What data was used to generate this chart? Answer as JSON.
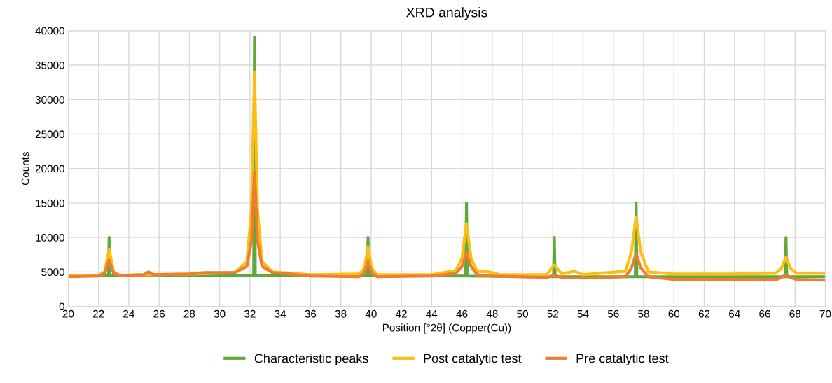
{
  "chart_data": {
    "type": "line",
    "title": "XRD analysis",
    "xlabel": "Position [°2θ] (Copper(Cu))",
    "ylabel": "Counts",
    "xlim": [
      20,
      70
    ],
    "xticks": [
      20,
      22,
      24,
      26,
      28,
      30,
      32,
      34,
      36,
      38,
      40,
      42,
      44,
      46,
      48,
      50,
      52,
      54,
      56,
      58,
      60,
      62,
      64,
      66,
      68,
      70
    ],
    "ylim": [
      0,
      40000
    ],
    "yticks": [
      0,
      5000,
      10000,
      15000,
      20000,
      25000,
      30000,
      35000,
      40000
    ],
    "grid": true,
    "legend": "bottom",
    "marker": "none",
    "line_style": "solid",
    "series": [
      {
        "name": "Characteristic peaks",
        "color": "#5fa83a",
        "x": [
          20,
          22.65,
          22.7,
          22.75,
          32.25,
          32.3,
          32.35,
          39.75,
          39.8,
          39.85,
          46.25,
          46.3,
          46.35,
          52.05,
          52.1,
          52.15,
          57.45,
          57.5,
          57.55,
          67.35,
          67.4,
          67.45,
          70
        ],
        "values": [
          4500,
          4500,
          10000,
          4500,
          4500,
          39000,
          4500,
          4500,
          10000,
          4500,
          4400,
          15000,
          4400,
          4300,
          10000,
          4300,
          4300,
          15000,
          4300,
          4300,
          10000,
          4300,
          4300
        ]
      },
      {
        "name": "Post catalytic test",
        "color": "#fbbf14",
        "x": [
          20,
          22,
          22.4,
          22.7,
          23.0,
          23.4,
          25,
          28,
          31,
          31.8,
          32.1,
          32.3,
          32.5,
          32.8,
          33.5,
          36,
          39.2,
          39.55,
          39.8,
          40.05,
          40.4,
          44,
          45.6,
          46.0,
          46.3,
          46.6,
          47.0,
          47.8,
          48.5,
          51.6,
          52.1,
          52.6,
          53.4,
          54,
          56.8,
          57.2,
          57.5,
          57.8,
          58.3,
          60,
          63.8,
          66.7,
          67.1,
          67.4,
          67.7,
          68.1,
          70
        ],
        "values": [
          4400,
          4500,
          5000,
          8300,
          5000,
          4500,
          4600,
          4700,
          4900,
          6500,
          14000,
          34000,
          14000,
          6500,
          5000,
          4600,
          4700,
          5500,
          8600,
          5500,
          4600,
          4600,
          5200,
          7000,
          12000,
          7000,
          5100,
          5000,
          4600,
          4600,
          6000,
          4700,
          5100,
          4600,
          5100,
          8000,
          13000,
          8000,
          5000,
          4700,
          4700,
          4800,
          5500,
          7200,
          5500,
          4800,
          4800
        ]
      },
      {
        "name": "Pre catalytic test",
        "color": "#ee7d31",
        "x": [
          20,
          22,
          22.4,
          22.7,
          23.0,
          23.4,
          25,
          25.3,
          25.6,
          28,
          29,
          31,
          31.8,
          32.1,
          32.3,
          32.5,
          32.8,
          33.5,
          34.2,
          36,
          39.2,
          39.55,
          39.8,
          40.05,
          40.4,
          44,
          45.6,
          46.0,
          46.3,
          46.6,
          47.0,
          48,
          51.6,
          52.1,
          52.6,
          54,
          56.8,
          57.2,
          57.5,
          57.8,
          58.3,
          60,
          66.8,
          67.1,
          67.4,
          67.7,
          68.1,
          70
        ],
        "values": [
          4300,
          4400,
          4800,
          6700,
          4800,
          4500,
          4600,
          5000,
          4600,
          4700,
          4900,
          4900,
          5800,
          9500,
          19500,
          9500,
          5800,
          4900,
          4800,
          4400,
          4300,
          4800,
          6500,
          4800,
          4300,
          4400,
          4800,
          5800,
          7800,
          5800,
          4600,
          4400,
          4200,
          4500,
          4200,
          4100,
          4300,
          5600,
          7700,
          5600,
          4300,
          3900,
          3900,
          4200,
          4600,
          4200,
          3900,
          3800
        ]
      }
    ]
  }
}
